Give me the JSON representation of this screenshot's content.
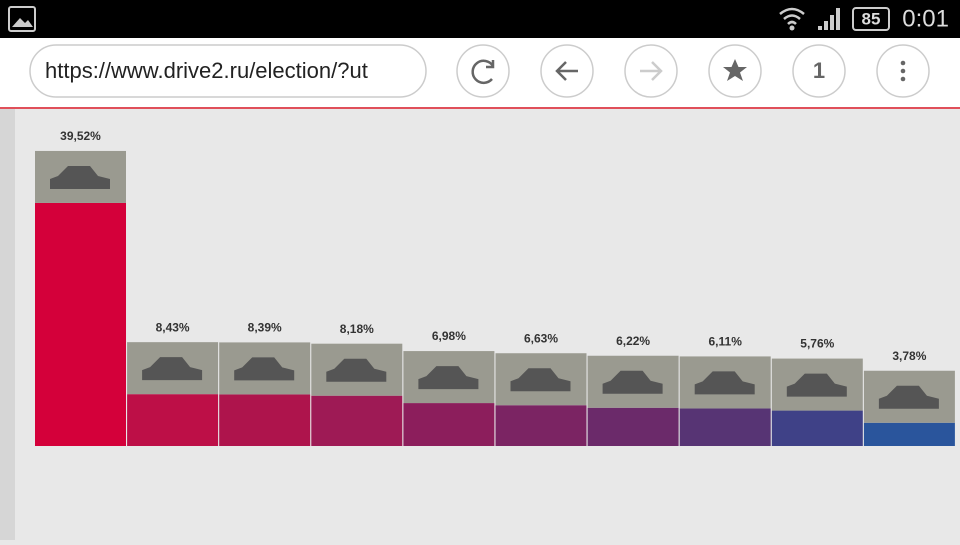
{
  "status_bar": {
    "battery": "85",
    "time": "0:01"
  },
  "browser": {
    "url": "https://www.drive2.ru/election/?ut",
    "tabs": "1"
  },
  "chart_data": {
    "type": "bar",
    "values": [
      39.52,
      8.43,
      8.39,
      8.18,
      6.98,
      6.63,
      6.22,
      6.11,
      5.76,
      3.78
    ],
    "value_labels": [
      "39,52%",
      "8,43%",
      "8,39%",
      "8,18%",
      "6,98%",
      "6,63%",
      "6,22%",
      "6,11%",
      "5,76%",
      "3,78%"
    ],
    "colors": [
      "#d4003a",
      "#bd0f47",
      "#ae144c",
      "#9e1a55",
      "#8c1e5c",
      "#7b2463",
      "#6b2a6a",
      "#573474",
      "#3f4187",
      "#2a559c"
    ]
  }
}
